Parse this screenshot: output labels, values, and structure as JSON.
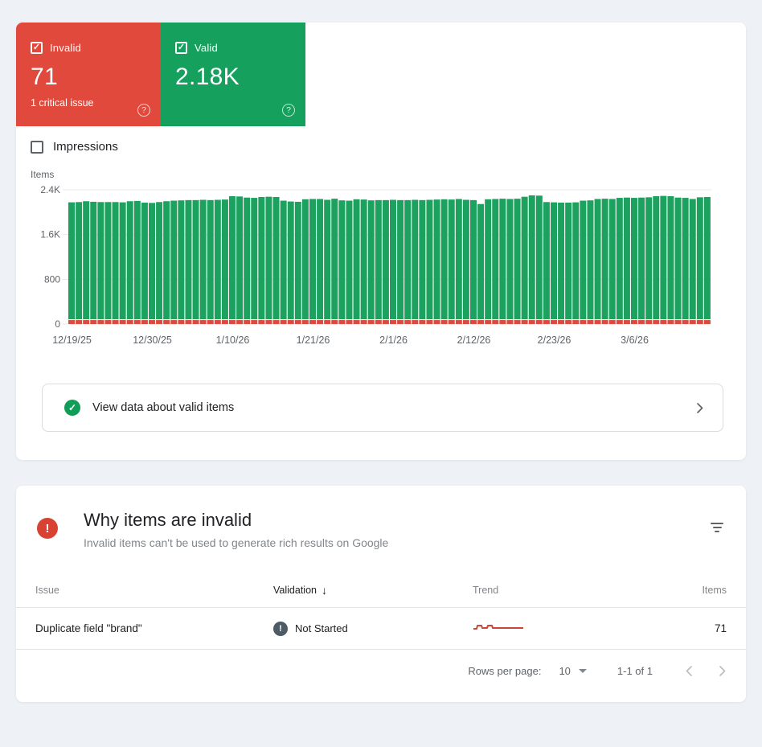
{
  "colors": {
    "invalid_red": "#e0493b",
    "valid_green": "#16a05e",
    "bar_green": "#1ca15f",
    "bar_red": "#dc4b40",
    "check_green": "#0f9d58",
    "error_red": "#d74233",
    "notstarted_gray": "#4c5b66",
    "grid_line": "#e6e8ec",
    "axis_text": "#5f6368",
    "sparkline_red": "#c9473a",
    "disabled_chevron": "#b9bdc2",
    "enabled_chevron": "#5f6368"
  },
  "summary": {
    "invalid": {
      "label": "Invalid",
      "value": "71",
      "note": "1 critical issue",
      "checked": true,
      "help_icon": "?"
    },
    "valid": {
      "label": "Valid",
      "value": "2.18K",
      "checked": true,
      "help_icon": "?"
    }
  },
  "impressions_toggle": {
    "label": "Impressions",
    "checked": false
  },
  "chart_data": {
    "type": "bar",
    "stacked": true,
    "title": "",
    "xlabel": "",
    "ylabel": "Items",
    "ylim": [
      0,
      2400
    ],
    "grid": true,
    "y_ticks": [
      {
        "label": "0",
        "value": 0
      },
      {
        "label": "800",
        "value": 800
      },
      {
        "label": "1.6K",
        "value": 1600
      },
      {
        "label": "2.4K",
        "value": 2400
      }
    ],
    "x_ticks": [
      {
        "label": "12/19/25",
        "day": 0
      },
      {
        "label": "12/30/25",
        "day": 11
      },
      {
        "label": "1/10/26",
        "day": 22
      },
      {
        "label": "1/21/26",
        "day": 33
      },
      {
        "label": "2/1/26",
        "day": 44
      },
      {
        "label": "2/12/26",
        "day": 55
      },
      {
        "label": "2/23/26",
        "day": 66
      },
      {
        "label": "3/6/26",
        "day": 77
      }
    ],
    "series": [
      {
        "name": "Valid",
        "values": [
          2090,
          2095,
          2110,
          2100,
          2095,
          2095,
          2095,
          2090,
          2110,
          2115,
          2085,
          2080,
          2095,
          2110,
          2120,
          2125,
          2130,
          2130,
          2135,
          2130,
          2135,
          2140,
          2200,
          2195,
          2175,
          2170,
          2185,
          2190,
          2185,
          2120,
          2105,
          2100,
          2145,
          2150,
          2150,
          2135,
          2155,
          2125,
          2120,
          2145,
          2140,
          2125,
          2130,
          2130,
          2135,
          2130,
          2130,
          2135,
          2130,
          2135,
          2140,
          2145,
          2140,
          2150,
          2135,
          2130,
          2060,
          2145,
          2150,
          2155,
          2150,
          2155,
          2190,
          2215,
          2210,
          2095,
          2090,
          2085,
          2085,
          2090,
          2120,
          2125,
          2150,
          2155,
          2150,
          2170,
          2175,
          2170,
          2175,
          2180,
          2200,
          2205,
          2200,
          2175,
          2170,
          2150,
          2180,
          2185
        ]
      },
      {
        "name": "Invalid",
        "constant_value": 71
      }
    ]
  },
  "valid_link": {
    "label": "View data about valid items"
  },
  "issues_panel": {
    "title": "Why items are invalid",
    "subtitle": "Invalid items can't be used to generate rich results on Google",
    "table": {
      "columns": {
        "issue": "Issue",
        "validation": "Validation",
        "trend": "Trend",
        "items": "Items"
      },
      "sort_column": "Validation",
      "sort_arrow": "↓",
      "rows": [
        {
          "issue": "Duplicate field \"brand\"",
          "validation": "Not Started",
          "items": "71",
          "trend_points": [
            [
              1,
              10
            ],
            [
              5,
              10
            ],
            [
              6,
              6
            ],
            [
              11,
              6
            ],
            [
              12,
              9
            ],
            [
              18,
              9
            ],
            [
              19,
              6
            ],
            [
              24,
              6
            ],
            [
              25,
              9
            ],
            [
              63,
              9
            ]
          ]
        }
      ]
    },
    "pagination": {
      "rows_label": "Rows per page:",
      "value": "10",
      "range": "1-1 of 1"
    }
  }
}
